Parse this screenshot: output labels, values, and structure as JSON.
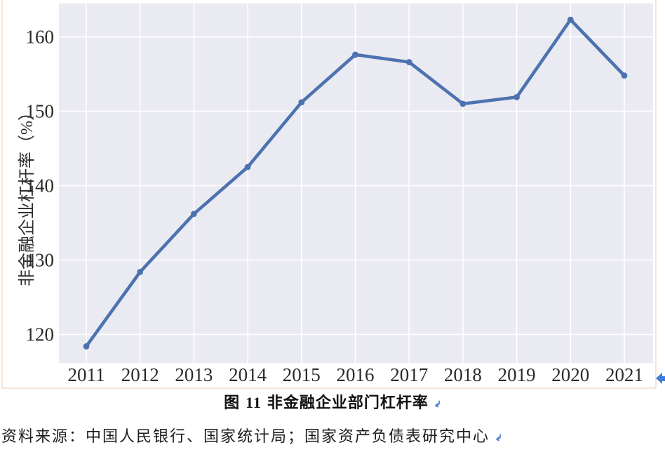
{
  "figure": {
    "caption_prefix": "图",
    "caption_number": "11",
    "caption_title": "非金融企业部门杠杆率",
    "source_note": "资料来源：中国人民银行、国家统计局；国家资产负债表研究中心",
    "border_color": "#f4e5d6",
    "paragraph_mark_color": "#4e86d8",
    "anchor_icon_color": "#3c7ede",
    "page_bg": "#ffffff"
  },
  "chart_data": {
    "type": "line",
    "title": "",
    "xlabel": "",
    "ylabel": "非金融企业杠杆率（%）",
    "categories": [
      "2011",
      "2012",
      "2013",
      "2014",
      "2015",
      "2016",
      "2017",
      "2018",
      "2019",
      "2020",
      "2021"
    ],
    "series": [
      {
        "name": "非金融企业部门杠杆率",
        "color": "#4C72B0",
        "values": [
          118.4,
          128.4,
          136.2,
          142.5,
          151.2,
          157.6,
          156.6,
          151.0,
          151.9,
          162.3,
          154.8
        ]
      }
    ],
    "yticks": [
      120,
      130,
      140,
      150,
      160
    ],
    "ylim_visible": [
      116.2,
      164.6
    ],
    "grid": true,
    "legend": "none",
    "marker": "circle",
    "plot_bg": "#EAEAF2",
    "grid_color": "#FFFFFF",
    "tick_label_color": "#2b2b2b",
    "line_width": 4.6,
    "marker_radius": 4.4
  }
}
